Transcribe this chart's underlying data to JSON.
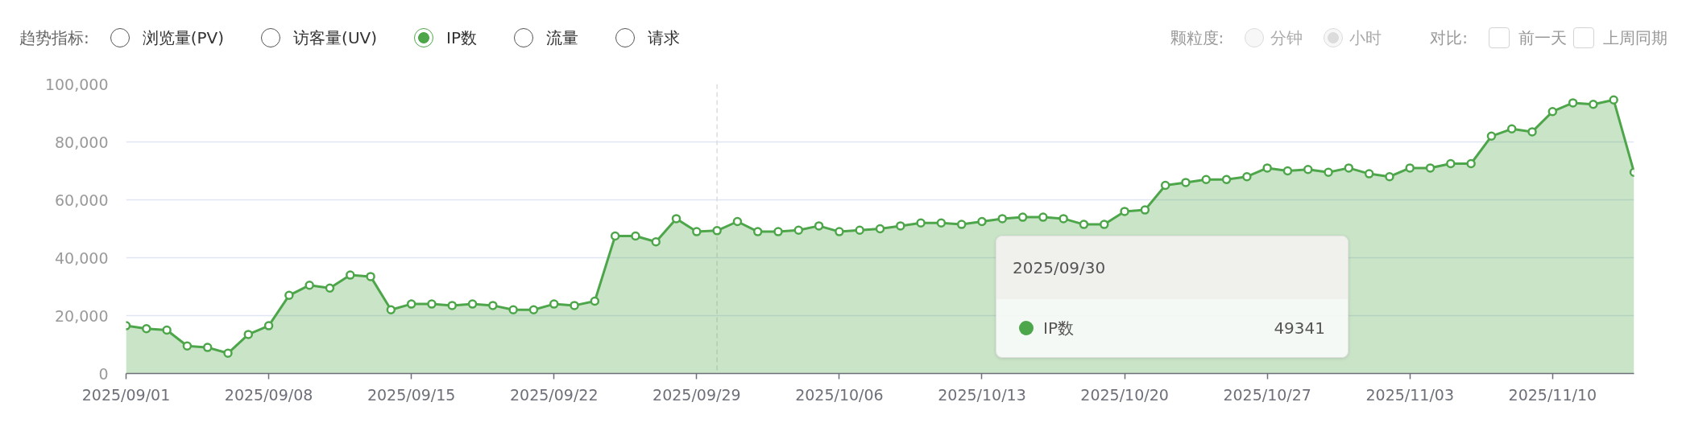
{
  "chart_data": {
    "type": "area",
    "x": [
      "2025-09-01",
      "2025-09-02",
      "2025-09-03",
      "2025-09-04",
      "2025-09-05",
      "2025-09-06",
      "2025-09-07",
      "2025-09-08",
      "2025-09-09",
      "2025-09-10",
      "2025-09-11",
      "2025-09-12",
      "2025-09-13",
      "2025-09-14",
      "2025-09-15",
      "2025-09-16",
      "2025-09-17",
      "2025-09-18",
      "2025-09-19",
      "2025-09-20",
      "2025-09-21",
      "2025-09-22",
      "2025-09-23",
      "2025-09-24",
      "2025-09-25",
      "2025-09-26",
      "2025-09-27",
      "2025-09-28",
      "2025-09-29",
      "2025-09-30",
      "2025-10-01",
      "2025-10-02",
      "2025-10-03",
      "2025-10-04",
      "2025-10-05",
      "2025-10-06",
      "2025-10-07",
      "2025-10-08",
      "2025-10-09",
      "2025-10-10",
      "2025-10-11",
      "2025-10-12",
      "2025-10-13",
      "2025-10-14",
      "2025-10-15",
      "2025-10-16",
      "2025-10-17",
      "2025-10-18",
      "2025-10-19",
      "2025-10-20",
      "2025-10-21",
      "2025-10-22",
      "2025-10-23",
      "2025-10-24",
      "2025-10-25",
      "2025-10-26",
      "2025-10-27",
      "2025-10-28",
      "2025-10-29",
      "2025-10-30",
      "2025-10-31",
      "2025-11-01",
      "2025-11-02",
      "2025-11-03",
      "2025-11-04",
      "2025-11-05",
      "2025-11-06",
      "2025-11-07",
      "2025-11-08",
      "2025-11-09",
      "2025-11-10",
      "2025-11-11",
      "2025-11-12",
      "2025-11-13",
      "2025-11-14"
    ],
    "series": [
      {
        "name": "IP数",
        "color": "#4ea64a",
        "values": [
          16500,
          15500,
          15000,
          9500,
          9000,
          7000,
          13500,
          16500,
          27000,
          30500,
          29500,
          34000,
          33500,
          22000,
          24000,
          24000,
          23500,
          24000,
          23500,
          22000,
          22000,
          24000,
          23500,
          25000,
          47500,
          47500,
          45500,
          53500,
          49000,
          49341,
          52500,
          49000,
          49000,
          49500,
          51000,
          49000,
          49500,
          50000,
          51000,
          52000,
          52000,
          51500,
          52500,
          53500,
          54000,
          54000,
          53500,
          51500,
          51500,
          56000,
          56500,
          65000,
          66000,
          67000,
          67000,
          68000,
          71000,
          70000,
          70500,
          69500,
          71000,
          69000,
          68000,
          71000,
          71000,
          72500,
          72500,
          82000,
          84500,
          83500,
          90500,
          93500,
          93000,
          94500,
          69500
        ]
      }
    ],
    "xlim": [
      "2025-09-01",
      "2025-11-14"
    ],
    "xticks": [
      {
        "value": "2025-09-01",
        "label": "2025/09/01"
      },
      {
        "value": "2025-09-08",
        "label": "2025/09/08"
      },
      {
        "value": "2025-09-15",
        "label": "2025/09/15"
      },
      {
        "value": "2025-09-22",
        "label": "2025/09/22"
      },
      {
        "value": "2025-09-29",
        "label": "2025/09/29"
      },
      {
        "value": "2025-10-06",
        "label": "2025/10/06"
      },
      {
        "value": "2025-10-13",
        "label": "2025/10/13"
      },
      {
        "value": "2025-10-20",
        "label": "2025/10/20"
      },
      {
        "value": "2025-10-27",
        "label": "2025/10/27"
      },
      {
        "value": "2025-11-03",
        "label": "2025/11/03"
      },
      {
        "value": "2025-11-10",
        "label": "2025/11/10"
      }
    ],
    "ylim": [
      0,
      100000
    ],
    "yticks": [
      0,
      {
        "value": 20000,
        "label": "20,000"
      },
      {
        "value": 40000,
        "label": "40,000"
      },
      {
        "value": 60000,
        "label": "60,000"
      },
      {
        "value": 80000,
        "label": "80,000"
      },
      {
        "value": 100000,
        "label": "100,000"
      }
    ],
    "grid": "y",
    "marker": "circle",
    "line_style": "solid",
    "ref_lines": [
      {
        "axis": "x",
        "value": "2025-09-30",
        "color": "#dddddd",
        "line_style": "dashed"
      }
    ],
    "annotations": [
      "趋势指标:",
      "浏览量(PV)",
      "访客量(UV)",
      "流量",
      "请求",
      "颗粒度:",
      "分钟",
      "小时",
      "对比:",
      "前一天",
      "上周同期",
      "2025/09/30",
      "49341"
    ]
  }
}
